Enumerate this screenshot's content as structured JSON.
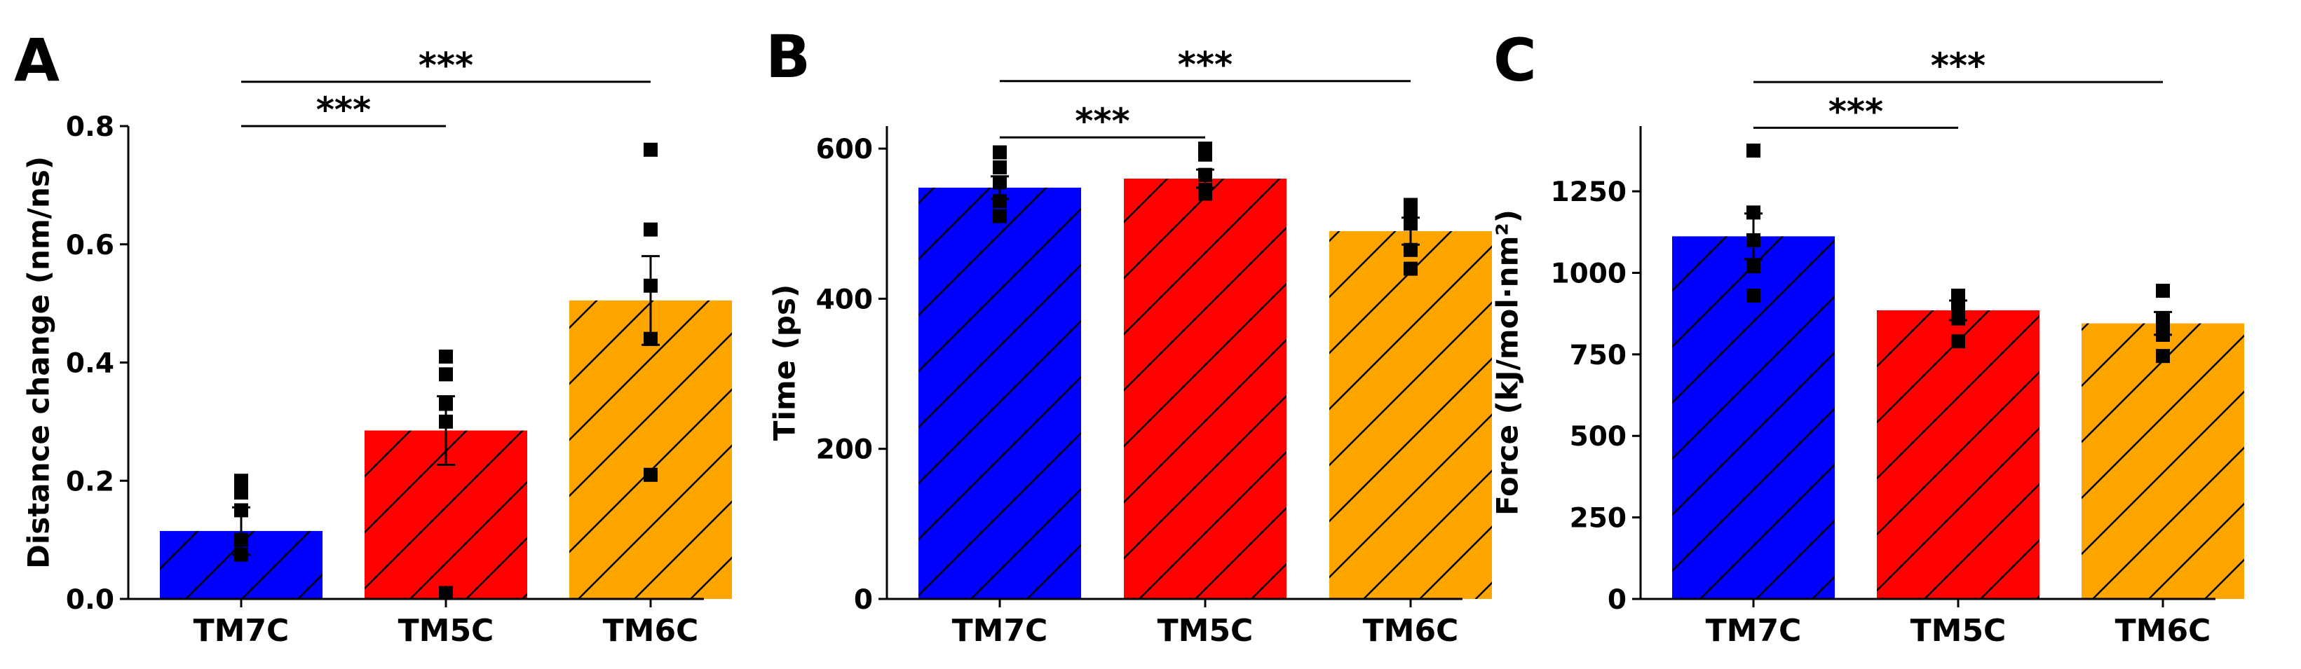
{
  "chart_data": [
    {
      "type": "bar",
      "panel": "A",
      "title": "",
      "xlabel": "",
      "ylabel": "Distance change (nm/ns)",
      "categories": [
        "TM7C",
        "TM5C",
        "TM6C"
      ],
      "values": [
        0.115,
        0.285,
        0.505
      ],
      "errors": [
        0.04,
        0.058,
        0.075
      ],
      "colors": [
        "#0000ff",
        "#ff0000",
        "#ffa500"
      ],
      "hatch": "diagonal",
      "points": [
        [
          0.2,
          0.18,
          0.15,
          0.1,
          0.075
        ],
        [
          0.41,
          0.38,
          0.33,
          0.3,
          0.01
        ],
        [
          0.76,
          0.625,
          0.53,
          0.44,
          0.21
        ]
      ],
      "ylim": [
        0,
        0.8
      ],
      "yticks": [
        0.0,
        0.2,
        0.4,
        0.6,
        0.8
      ],
      "ytick_labels": [
        "0.0",
        "0.2",
        "0.4",
        "0.6",
        "0.8"
      ],
      "significance": [
        {
          "from": "TM7C",
          "to": "TM5C",
          "label": "***",
          "level": 0.8
        },
        {
          "from": "TM7C",
          "to": "TM6C",
          "label": "***",
          "level": 0.875
        }
      ]
    },
    {
      "type": "bar",
      "panel": "B",
      "title": "",
      "xlabel": "",
      "ylabel": "Time (ps)",
      "categories": [
        "TM7C",
        "TM5C",
        "TM6C"
      ],
      "values": [
        548,
        560,
        490
      ],
      "errors": [
        15,
        12,
        18
      ],
      "colors": [
        "#0000ff",
        "#ff0000",
        "#ffa500"
      ],
      "hatch": "diagonal",
      "points": [
        [
          595,
          575,
          555,
          530,
          510
        ],
        [
          600,
          592,
          565,
          545,
          540
        ],
        [
          525,
          515,
          500,
          465,
          440
        ]
      ],
      "ylim": [
        0,
        630
      ],
      "yticks": [
        0,
        200,
        400,
        600
      ],
      "ytick_labels": [
        "0",
        "200",
        "400",
        "600"
      ],
      "significance": [
        {
          "from": "TM7C",
          "to": "TM5C",
          "label": "***",
          "level": 615
        },
        {
          "from": "TM7C",
          "to": "TM6C",
          "label": "***",
          "level": 690
        }
      ]
    },
    {
      "type": "bar",
      "panel": "C",
      "title": "",
      "xlabel": "",
      "ylabel": "Force (kJ/mol·nm²)",
      "categories": [
        "TM7C",
        "TM5C",
        "TM6C"
      ],
      "values": [
        1112,
        885,
        845
      ],
      "errors": [
        70,
        30,
        35
      ],
      "colors": [
        "#0000ff",
        "#ff0000",
        "#ffa500"
      ],
      "hatch": "diagonal",
      "points": [
        [
          1375,
          1185,
          1100,
          1020,
          930
        ],
        [
          930,
          910,
          885,
          860,
          790
        ],
        [
          945,
          860,
          845,
          810,
          745
        ]
      ],
      "ylim": [
        0,
        1450
      ],
      "yticks": [
        0,
        250,
        500,
        750,
        1000,
        1250
      ],
      "ytick_labels": [
        "0",
        "250",
        "500",
        "750",
        "1000",
        "1250"
      ],
      "significance": [
        {
          "from": "TM7C",
          "to": "TM5C",
          "label": "***",
          "level": 1445
        },
        {
          "from": "TM7C",
          "to": "TM6C",
          "label": "***",
          "level": 1585
        }
      ]
    }
  ]
}
